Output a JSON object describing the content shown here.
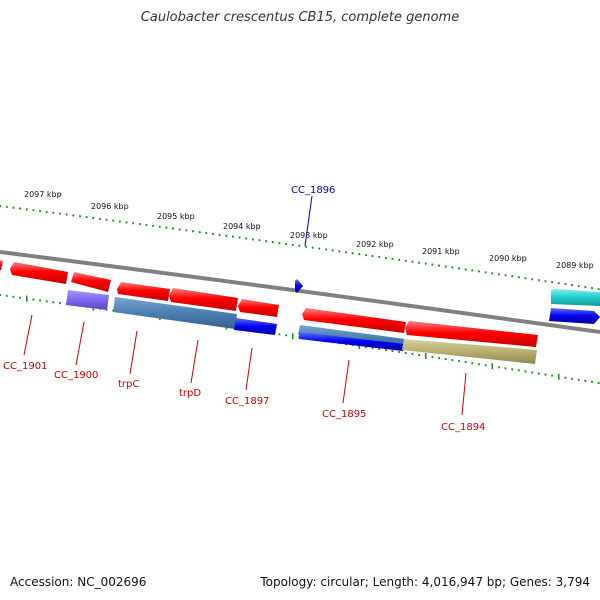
{
  "title": "Caulobacter crescentus CB15, complete genome",
  "footer": {
    "accession": "Accession: NC_002696",
    "summary": "Topology: circular; Length: 4,016,947 bp; Genes: 3,794"
  },
  "kbp_labels": [
    "2097 kbp",
    "2096 kbp",
    "2095 kbp",
    "2094 kbp",
    "2093 kbp",
    "2092 kbp",
    "2091 kbp",
    "2090 kbp",
    "2089 kbp"
  ],
  "gene_labels": {
    "cc1896": "CC_1896",
    "cc1901": "CC_1901",
    "cc1900": "CC_1900",
    "trpC": "trpC",
    "trpD": "trpD",
    "cc1897": "CC_1897",
    "cc1895": "CC_1895",
    "cc1894": "CC_1894"
  },
  "colors": {
    "gene_red": "#ff0000",
    "tick_green": "#228b22",
    "backbone": "#808080",
    "label_red": "#cc0000",
    "label_blue": "#0000cc",
    "cds_blue": "#0000ee",
    "steel_blue": "#4a7fb0",
    "cyan": "#22cccc",
    "olive": "#b8ae6e",
    "purple": "#7b68ee"
  }
}
